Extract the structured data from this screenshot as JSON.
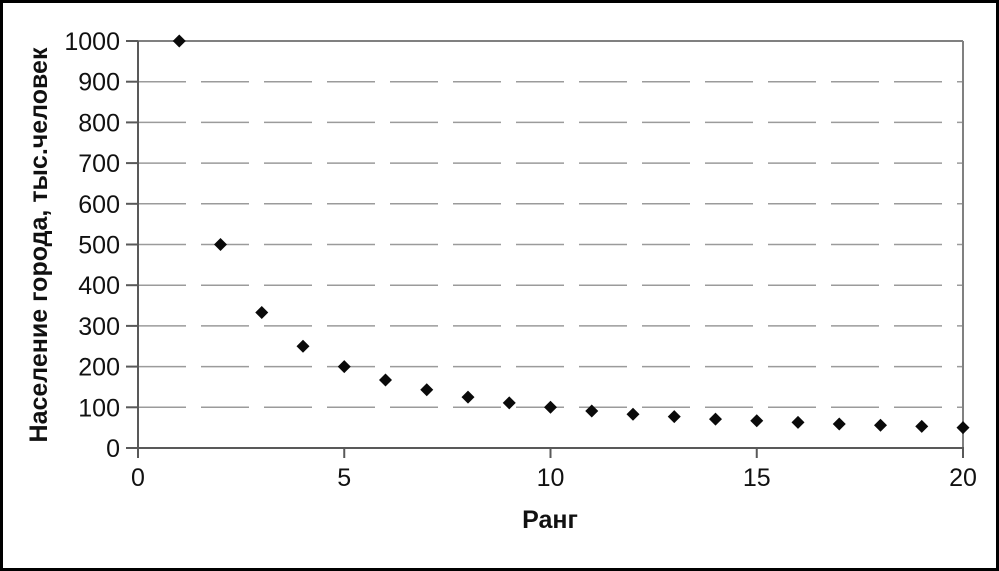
{
  "chart_data": {
    "type": "scatter",
    "title": "",
    "xlabel": "Ранг",
    "ylabel": "Население города, тыс.человек",
    "x": [
      1,
      2,
      3,
      4,
      5,
      6,
      7,
      8,
      9,
      10,
      11,
      12,
      13,
      14,
      15,
      16,
      17,
      18,
      19,
      20
    ],
    "y": [
      1000,
      500,
      333,
      250,
      200,
      167,
      143,
      125,
      111,
      100,
      91,
      83,
      77,
      71,
      67,
      63,
      59,
      56,
      53,
      50
    ],
    "xlim": [
      0,
      20
    ],
    "ylim": [
      0,
      1000
    ],
    "x_ticks": [
      0,
      5,
      10,
      15,
      20
    ],
    "y_ticks": [
      0,
      100,
      200,
      300,
      400,
      500,
      600,
      700,
      800,
      900,
      1000
    ],
    "grid": "horizontal-dashed",
    "legend": "none",
    "marker": {
      "shape": "diamond",
      "size": 13,
      "color": "#0a0a0a"
    },
    "colors": {
      "background": "#ffffff",
      "outer_frame": "#000000",
      "axis_line": "#595959",
      "plot_border": "#808080",
      "gridline": "#9b9b9b",
      "text": "#111111"
    }
  }
}
